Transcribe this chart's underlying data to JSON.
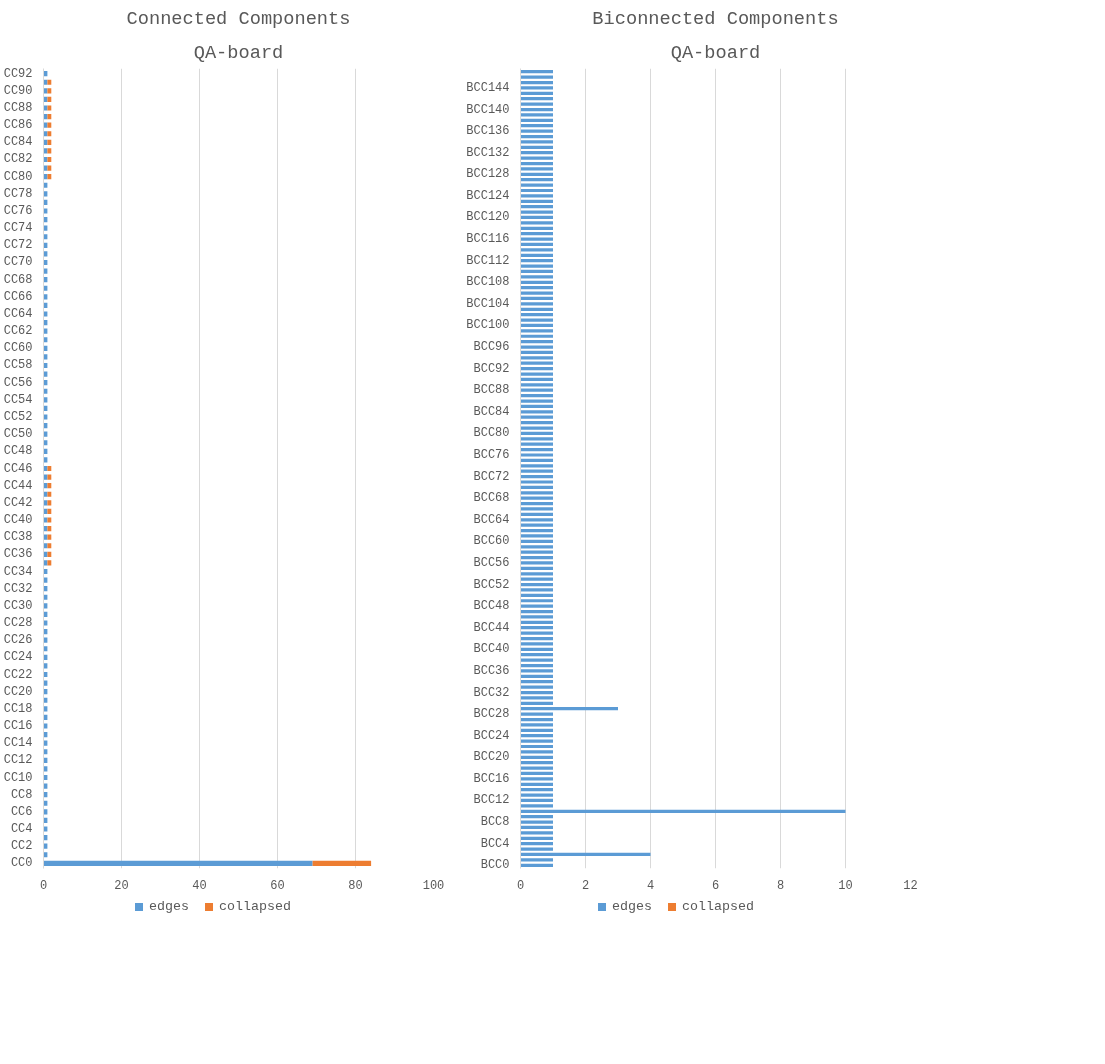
{
  "chart_data": [
    {
      "type": "bar",
      "orientation": "horizontal",
      "stacked": true,
      "title": "Connected Components",
      "subtitle": "QA-board",
      "categories": [
        "CC92",
        null,
        "CC90",
        null,
        "CC88",
        null,
        "CC86",
        null,
        "CC84",
        null,
        "CC82",
        null,
        "CC80",
        null,
        "CC78",
        null,
        "CC76",
        null,
        "CC74",
        null,
        "CC72",
        null,
        "CC70",
        null,
        "CC68",
        null,
        "CC66",
        null,
        "CC64",
        null,
        "CC62",
        null,
        "CC60",
        null,
        "CC58",
        null,
        "CC56",
        null,
        "CC54",
        null,
        "CC52",
        null,
        "CC50",
        null,
        "CC48",
        null,
        "CC46",
        null,
        "CC44",
        null,
        "CC42",
        null,
        "CC40",
        null,
        "CC38",
        null,
        "CC36",
        null,
        "CC34",
        null,
        "CC32",
        null,
        "CC30",
        null,
        "CC28",
        null,
        "CC26",
        null,
        "CC24",
        null,
        "CC22",
        null,
        "CC20",
        null,
        "CC18",
        null,
        "CC16",
        null,
        "CC14",
        null,
        "CC12",
        null,
        "CC10",
        null,
        "CC8",
        null,
        "CC6",
        null,
        "CC4",
        null,
        "CC2",
        null,
        "CC0"
      ],
      "series": [
        {
          "name": "edges",
          "color": "#5b9bd5",
          "values": [
            1,
            1,
            1,
            1,
            1,
            1,
            1,
            1,
            1,
            1,
            1,
            1,
            1,
            1,
            1,
            1,
            1,
            1,
            1,
            1,
            1,
            1,
            1,
            1,
            1,
            1,
            1,
            1,
            1,
            1,
            1,
            1,
            1,
            1,
            1,
            1,
            1,
            1,
            1,
            1,
            1,
            1,
            1,
            1,
            1,
            1,
            1,
            1,
            1,
            1,
            1,
            1,
            1,
            1,
            1,
            1,
            1,
            1,
            1,
            1,
            1,
            1,
            1,
            1,
            1,
            1,
            1,
            1,
            1,
            1,
            1,
            1,
            1,
            1,
            1,
            1,
            1,
            1,
            1,
            1,
            1,
            1,
            1,
            1,
            1,
            1,
            1,
            1,
            1,
            1,
            1,
            1,
            69
          ]
        },
        {
          "name": "collapsed",
          "color": "#ed7d31",
          "values": [
            0,
            1,
            1,
            1,
            1,
            1,
            1,
            1,
            1,
            1,
            1,
            1,
            1,
            0,
            0,
            0,
            0,
            0,
            0,
            0,
            0,
            0,
            0,
            0,
            0,
            0,
            0,
            0,
            0,
            0,
            0,
            0,
            0,
            0,
            0,
            0,
            0,
            0,
            0,
            0,
            0,
            0,
            0,
            0,
            0,
            0,
            1,
            1,
            1,
            1,
            1,
            1,
            1,
            1,
            1,
            1,
            1,
            1,
            0,
            0,
            0,
            0,
            0,
            0,
            0,
            0,
            0,
            0,
            0,
            0,
            0,
            0,
            0,
            0,
            0,
            0,
            0,
            0,
            0,
            0,
            0,
            0,
            0,
            0,
            0,
            0,
            0,
            0,
            0,
            0,
            0,
            0,
            15
          ]
        }
      ],
      "xlim": [
        0,
        100
      ],
      "xticks": [
        0,
        20,
        40,
        60,
        80,
        100
      ],
      "grid": "x",
      "legend": "bottom"
    },
    {
      "type": "bar",
      "orientation": "horizontal",
      "stacked": true,
      "title": "Biconnected Components",
      "subtitle": "QA-board",
      "categories": [
        null,
        null,
        null,
        "BCC144",
        null,
        null,
        null,
        "BCC140",
        null,
        null,
        null,
        "BCC136",
        null,
        null,
        null,
        "BCC132",
        null,
        null,
        null,
        "BCC128",
        null,
        null,
        null,
        "BCC124",
        null,
        null,
        null,
        "BCC120",
        null,
        null,
        null,
        "BCC116",
        null,
        null,
        null,
        "BCC112",
        null,
        null,
        null,
        "BCC108",
        null,
        null,
        null,
        "BCC104",
        null,
        null,
        null,
        "BCC100",
        null,
        null,
        null,
        "BCC96",
        null,
        null,
        null,
        "BCC92",
        null,
        null,
        null,
        "BCC88",
        null,
        null,
        null,
        "BCC84",
        null,
        null,
        null,
        "BCC80",
        null,
        null,
        null,
        "BCC76",
        null,
        null,
        null,
        "BCC72",
        null,
        null,
        null,
        "BCC68",
        null,
        null,
        null,
        "BCC64",
        null,
        null,
        null,
        "BCC60",
        null,
        null,
        null,
        "BCC56",
        null,
        null,
        null,
        "BCC52",
        null,
        null,
        null,
        "BCC48",
        null,
        null,
        null,
        "BCC44",
        null,
        null,
        null,
        "BCC40",
        null,
        null,
        null,
        "BCC36",
        null,
        null,
        null,
        "BCC32",
        null,
        null,
        null,
        "BCC28",
        null,
        null,
        null,
        "BCC24",
        null,
        null,
        null,
        "BCC20",
        null,
        null,
        null,
        "BCC16",
        null,
        null,
        null,
        "BCC12",
        null,
        null,
        null,
        "BCC8",
        null,
        null,
        null,
        "BCC4",
        null,
        null,
        null,
        "BCC0"
      ],
      "series": [
        {
          "name": "edges",
          "color": "#5b9bd5",
          "values": [
            1,
            1,
            1,
            1,
            1,
            1,
            1,
            1,
            1,
            1,
            1,
            1,
            1,
            1,
            1,
            1,
            1,
            1,
            1,
            1,
            1,
            1,
            1,
            1,
            1,
            1,
            1,
            1,
            1,
            1,
            1,
            1,
            1,
            1,
            1,
            1,
            1,
            1,
            1,
            1,
            1,
            1,
            1,
            1,
            1,
            1,
            1,
            1,
            1,
            1,
            1,
            1,
            1,
            1,
            1,
            1,
            1,
            1,
            1,
            1,
            1,
            1,
            1,
            1,
            1,
            1,
            1,
            1,
            1,
            1,
            1,
            1,
            1,
            1,
            1,
            1,
            1,
            1,
            1,
            1,
            1,
            1,
            1,
            1,
            1,
            1,
            1,
            1,
            1,
            1,
            1,
            1,
            1,
            1,
            1,
            1,
            1,
            1,
            1,
            1,
            1,
            1,
            1,
            1,
            1,
            1,
            1,
            1,
            1,
            1,
            1,
            1,
            1,
            1,
            1,
            1,
            1,
            1,
            3,
            1,
            1,
            1,
            1,
            1,
            1,
            1,
            1,
            1,
            1,
            1,
            1,
            1,
            1,
            1,
            1,
            1,
            1,
            10,
            1,
            1,
            1,
            1,
            1,
            1,
            1,
            4,
            1,
            1
          ]
        },
        {
          "name": "collapsed",
          "color": "#ed7d31",
          "values": [
            0,
            0,
            0,
            0,
            0,
            0,
            0,
            0,
            0,
            0,
            0,
            0,
            0,
            0,
            0,
            0,
            0,
            0,
            0,
            0,
            0,
            0,
            0,
            0,
            0,
            0,
            0,
            0,
            0,
            0,
            0,
            0,
            0,
            0,
            0,
            0,
            0,
            0,
            0,
            0,
            0,
            0,
            0,
            0,
            0,
            0,
            0,
            0,
            0,
            0,
            0,
            0,
            0,
            0,
            0,
            0,
            0,
            0,
            0,
            0,
            0,
            0,
            0,
            0,
            0,
            0,
            0,
            0,
            0,
            0,
            0,
            0,
            0,
            0,
            0,
            0,
            0,
            0,
            0,
            0,
            0,
            0,
            0,
            0,
            0,
            0,
            0,
            0,
            0,
            0,
            0,
            0,
            0,
            0,
            0,
            0,
            0,
            0,
            0,
            0,
            0,
            0,
            0,
            0,
            0,
            0,
            0,
            0,
            0,
            0,
            0,
            0,
            0,
            0,
            0,
            0,
            0,
            0,
            0,
            0,
            0,
            0,
            0,
            0,
            0,
            0,
            0,
            0,
            0,
            0,
            0,
            0,
            0,
            0,
            0,
            0,
            0,
            0,
            0,
            0,
            0,
            0,
            0,
            0,
            0,
            0,
            0,
            0
          ]
        }
      ],
      "xlim": [
        0,
        12
      ],
      "xticks": [
        0,
        2,
        4,
        6,
        8,
        10,
        12
      ],
      "grid": "x",
      "legend": "bottom"
    }
  ]
}
